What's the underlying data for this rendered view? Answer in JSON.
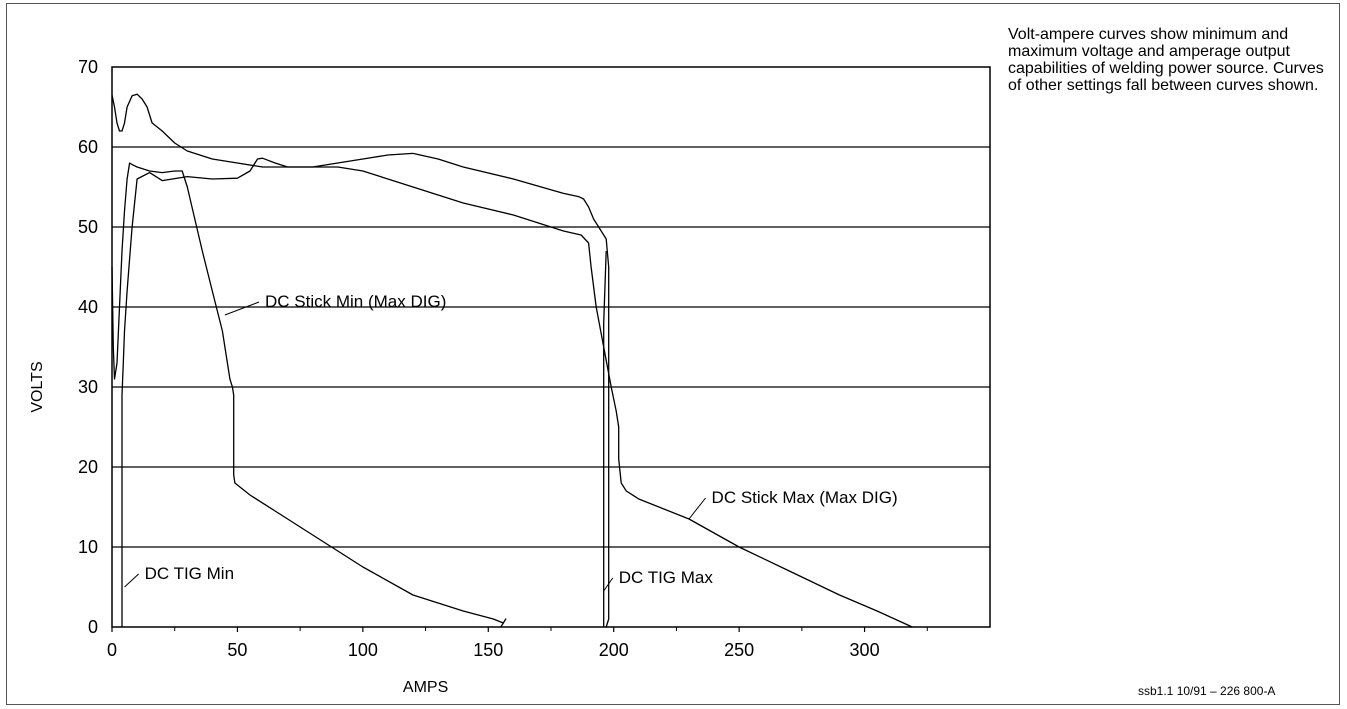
{
  "note": "Volt-ampere curves show minimum and maximum voltage and amperage output capabilities of welding power source. Curves of other settings fall between curves shown.",
  "footer": "ssb1.1 10/91 – 226 800-A",
  "chart_data": {
    "type": "line",
    "title": "",
    "xlabel": "AMPS",
    "ylabel": "VOLTS",
    "xlim": [
      0,
      350
    ],
    "ylim": [
      0,
      70
    ],
    "xticks": [
      0,
      50,
      100,
      150,
      200,
      250,
      300
    ],
    "yticks": [
      0,
      10,
      20,
      30,
      40,
      50,
      60,
      70
    ],
    "grid": "horizontal",
    "color": "#000000",
    "series": [
      {
        "name": "DC Stick Min (Max DIG)",
        "label_pos": [
          61,
          40
        ],
        "leader_to": [
          45,
          39
        ],
        "x": [
          0,
          0.5,
          1,
          2,
          3,
          4,
          5,
          6,
          7,
          8,
          10,
          15,
          20,
          25,
          28,
          30,
          33,
          36,
          40,
          44,
          46,
          47,
          48,
          48.5,
          48.5,
          49,
          55,
          65,
          80,
          100,
          120,
          140,
          152,
          156,
          157,
          155
        ],
        "y": [
          45,
          35,
          31,
          33,
          40,
          47,
          52,
          56,
          58,
          57.8,
          57.5,
          57,
          56.8,
          57,
          57,
          55,
          51,
          47,
          42,
          37,
          33,
          31,
          30,
          29,
          19,
          18,
          16.5,
          14.5,
          11.5,
          7.5,
          4,
          2,
          1,
          0.5,
          1,
          0
        ]
      },
      {
        "name": "DC Stick Max (Max DIG)",
        "label_pos": [
          239,
          15.5
        ],
        "leader_to": [
          230,
          13.5
        ],
        "x": [
          0,
          1,
          2,
          3,
          4,
          5,
          6,
          8,
          10,
          12,
          14,
          16,
          18,
          20,
          25,
          30,
          40,
          50,
          60,
          70,
          80,
          90,
          100,
          120,
          140,
          160,
          180,
          187,
          190,
          191,
          193,
          196,
          199,
          201,
          202,
          202,
          203,
          205,
          210,
          230,
          250,
          270,
          290,
          305,
          312,
          319
        ],
        "y": [
          66.5,
          65,
          63,
          62,
          62,
          63,
          65,
          66.4,
          66.6,
          66,
          65,
          63,
          62.5,
          62,
          60.5,
          59.5,
          58.5,
          58,
          57.5,
          57.5,
          57.5,
          57.5,
          57,
          55,
          53,
          51.5,
          49.5,
          49,
          48,
          45,
          40,
          35,
          30,
          27,
          25,
          21,
          18,
          17,
          16,
          13.5,
          10,
          7,
          4,
          2,
          1,
          0
        ]
      },
      {
        "name": "DC TIG Min",
        "label_pos": [
          13,
          6
        ],
        "leader_to": [
          5,
          5
        ],
        "x": [
          4,
          4,
          4.5,
          5,
          6,
          8,
          10,
          15,
          20,
          30,
          40,
          50,
          55,
          58,
          60,
          65,
          70,
          80,
          100,
          110,
          120,
          130,
          140,
          160,
          180,
          186,
          188,
          190,
          192,
          195,
          197,
          198,
          198,
          197
        ],
        "y": [
          0,
          29,
          33,
          37,
          42,
          50,
          56,
          56.8,
          55.8,
          56.3,
          56,
          56.1,
          57,
          58.5,
          58.6,
          58,
          57.5,
          57.5,
          58.5,
          59,
          59.2,
          58.5,
          57.5,
          56,
          54.2,
          53.8,
          53.5,
          52.5,
          51,
          49.5,
          48.5,
          45,
          1,
          0
        ]
      },
      {
        "name": "DC TIG Max",
        "label_pos": [
          202,
          5.5
        ],
        "leader_to": [
          196,
          4.5
        ],
        "x": [],
        "y": []
      }
    ]
  }
}
